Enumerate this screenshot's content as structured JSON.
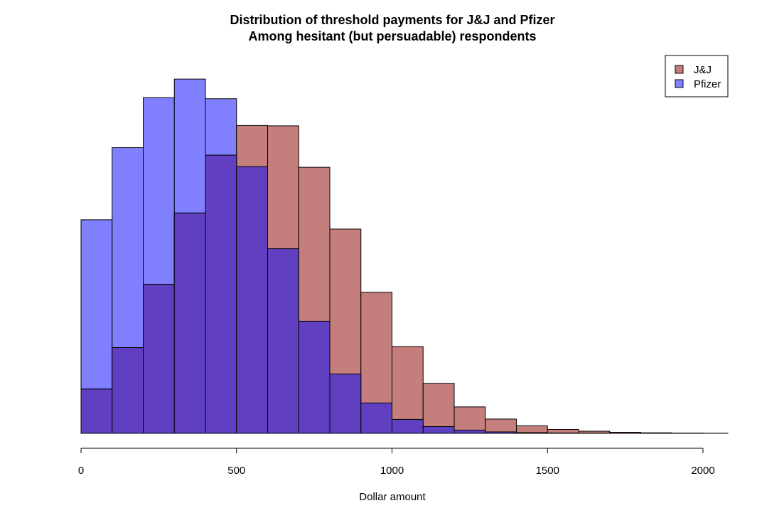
{
  "chart_data": {
    "type": "bar",
    "title": "Distribution of threshold payments for J&J and Pfizer",
    "subtitle": "Among hesitant (but persuadable) respondents",
    "xlabel": "Dollar amount",
    "ylabel": "",
    "xlim": [
      0,
      2080
    ],
    "x_ticks": [
      0,
      500,
      1000,
      1500,
      2000
    ],
    "x_tick_labels": [
      "0",
      "500",
      "1000",
      "1500",
      "2000"
    ],
    "bin_width": 100,
    "bin_edges": [
      0,
      100,
      200,
      300,
      400,
      500,
      600,
      700,
      800,
      900,
      1000,
      1100,
      1200,
      1300,
      1400,
      1500,
      1600,
      1700,
      1800,
      1900,
      2000,
      2080
    ],
    "y_axis_shown": false,
    "grid": false,
    "legend_position": "top-right",
    "overlap_color": "#6040C0",
    "series": [
      {
        "name": "J&J",
        "color": "#C47E7B",
        "values": [
          0.00124,
          0.0024,
          0.00417,
          0.00617,
          0.00779,
          0.00862,
          0.00861,
          0.00745,
          0.00572,
          0.00395,
          0.00243,
          0.0014,
          0.00074,
          0.0004,
          0.00021,
          0.00011,
          6e-05,
          3e-05,
          1.5e-05,
          7e-06,
          3e-06
        ]
      },
      {
        "name": "Pfizer",
        "color": "#8080FF",
        "values": [
          0.00598,
          0.008,
          0.0094,
          0.00992,
          0.00937,
          0.00747,
          0.00517,
          0.00314,
          0.00166,
          0.00085,
          0.00039,
          0.00019,
          9e-05,
          4e-05,
          2e-05,
          1e-05,
          5e-06,
          2e-06,
          1e-06,
          5e-07,
          2e-07
        ]
      }
    ],
    "ylim": [
      0,
      0.0107
    ]
  }
}
